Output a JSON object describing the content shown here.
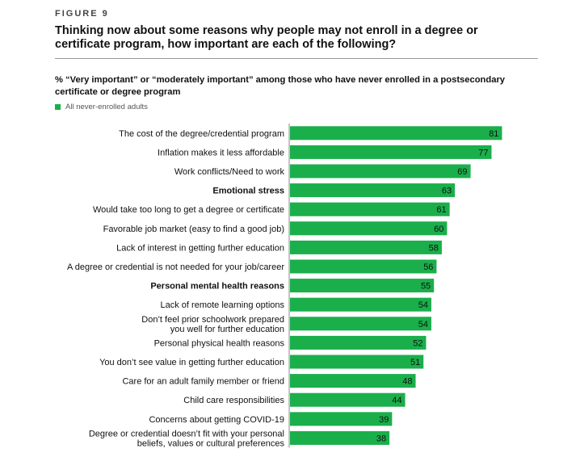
{
  "figure_label": "FIGURE 9",
  "title": "Thinking now about some reasons why people may not enroll in a degree or certificate program, how important are each of the following?",
  "subtitle": "% “Very important” or “moderately important” among those who have never enrolled in a postsecondary certificate or degree program",
  "colors": {
    "bar": "#1aaf4b",
    "axis": "#888888"
  },
  "chart_data": {
    "type": "bar",
    "orientation": "horizontal",
    "xlim": [
      0,
      100
    ],
    "legend": {
      "placement": "top-left"
    },
    "grid": false,
    "series": [
      {
        "name": "All never-enrolled adults"
      }
    ],
    "categories": [
      {
        "lines": [
          "The cost of the degree/credential program"
        ],
        "value": 81,
        "bold": false
      },
      {
        "lines": [
          "Inflation makes it less affordable"
        ],
        "value": 77,
        "bold": false
      },
      {
        "lines": [
          "Work conflicts/Need to work"
        ],
        "value": 69,
        "bold": false
      },
      {
        "lines": [
          "Emotional stress"
        ],
        "value": 63,
        "bold": true
      },
      {
        "lines": [
          "Would take too long to get a degree or certificate"
        ],
        "value": 61,
        "bold": false
      },
      {
        "lines": [
          "Favorable job market (easy to find a good job)"
        ],
        "value": 60,
        "bold": false
      },
      {
        "lines": [
          "Lack of interest in getting further education"
        ],
        "value": 58,
        "bold": false
      },
      {
        "lines": [
          "A degree or credential is not needed for your job/career"
        ],
        "value": 56,
        "bold": false
      },
      {
        "lines": [
          "Personal mental health reasons"
        ],
        "value": 55,
        "bold": true
      },
      {
        "lines": [
          "Lack of remote learning options"
        ],
        "value": 54,
        "bold": false
      },
      {
        "lines": [
          "Don’t feel prior schoolwork prepared",
          "you well for further education"
        ],
        "value": 54,
        "bold": false
      },
      {
        "lines": [
          "Personal physical health reasons"
        ],
        "value": 52,
        "bold": false
      },
      {
        "lines": [
          "You don’t see value in getting further education"
        ],
        "value": 51,
        "bold": false
      },
      {
        "lines": [
          "Care for an adult family member or friend"
        ],
        "value": 48,
        "bold": false
      },
      {
        "lines": [
          "Child care responsibilities"
        ],
        "value": 44,
        "bold": false
      },
      {
        "lines": [
          "Concerns about getting COVID-19"
        ],
        "value": 39,
        "bold": false
      },
      {
        "lines": [
          "Degree or credential doesn’t fit with your personal",
          "beliefs, values or cultural preferences"
        ],
        "value": 38,
        "bold": false
      }
    ]
  }
}
